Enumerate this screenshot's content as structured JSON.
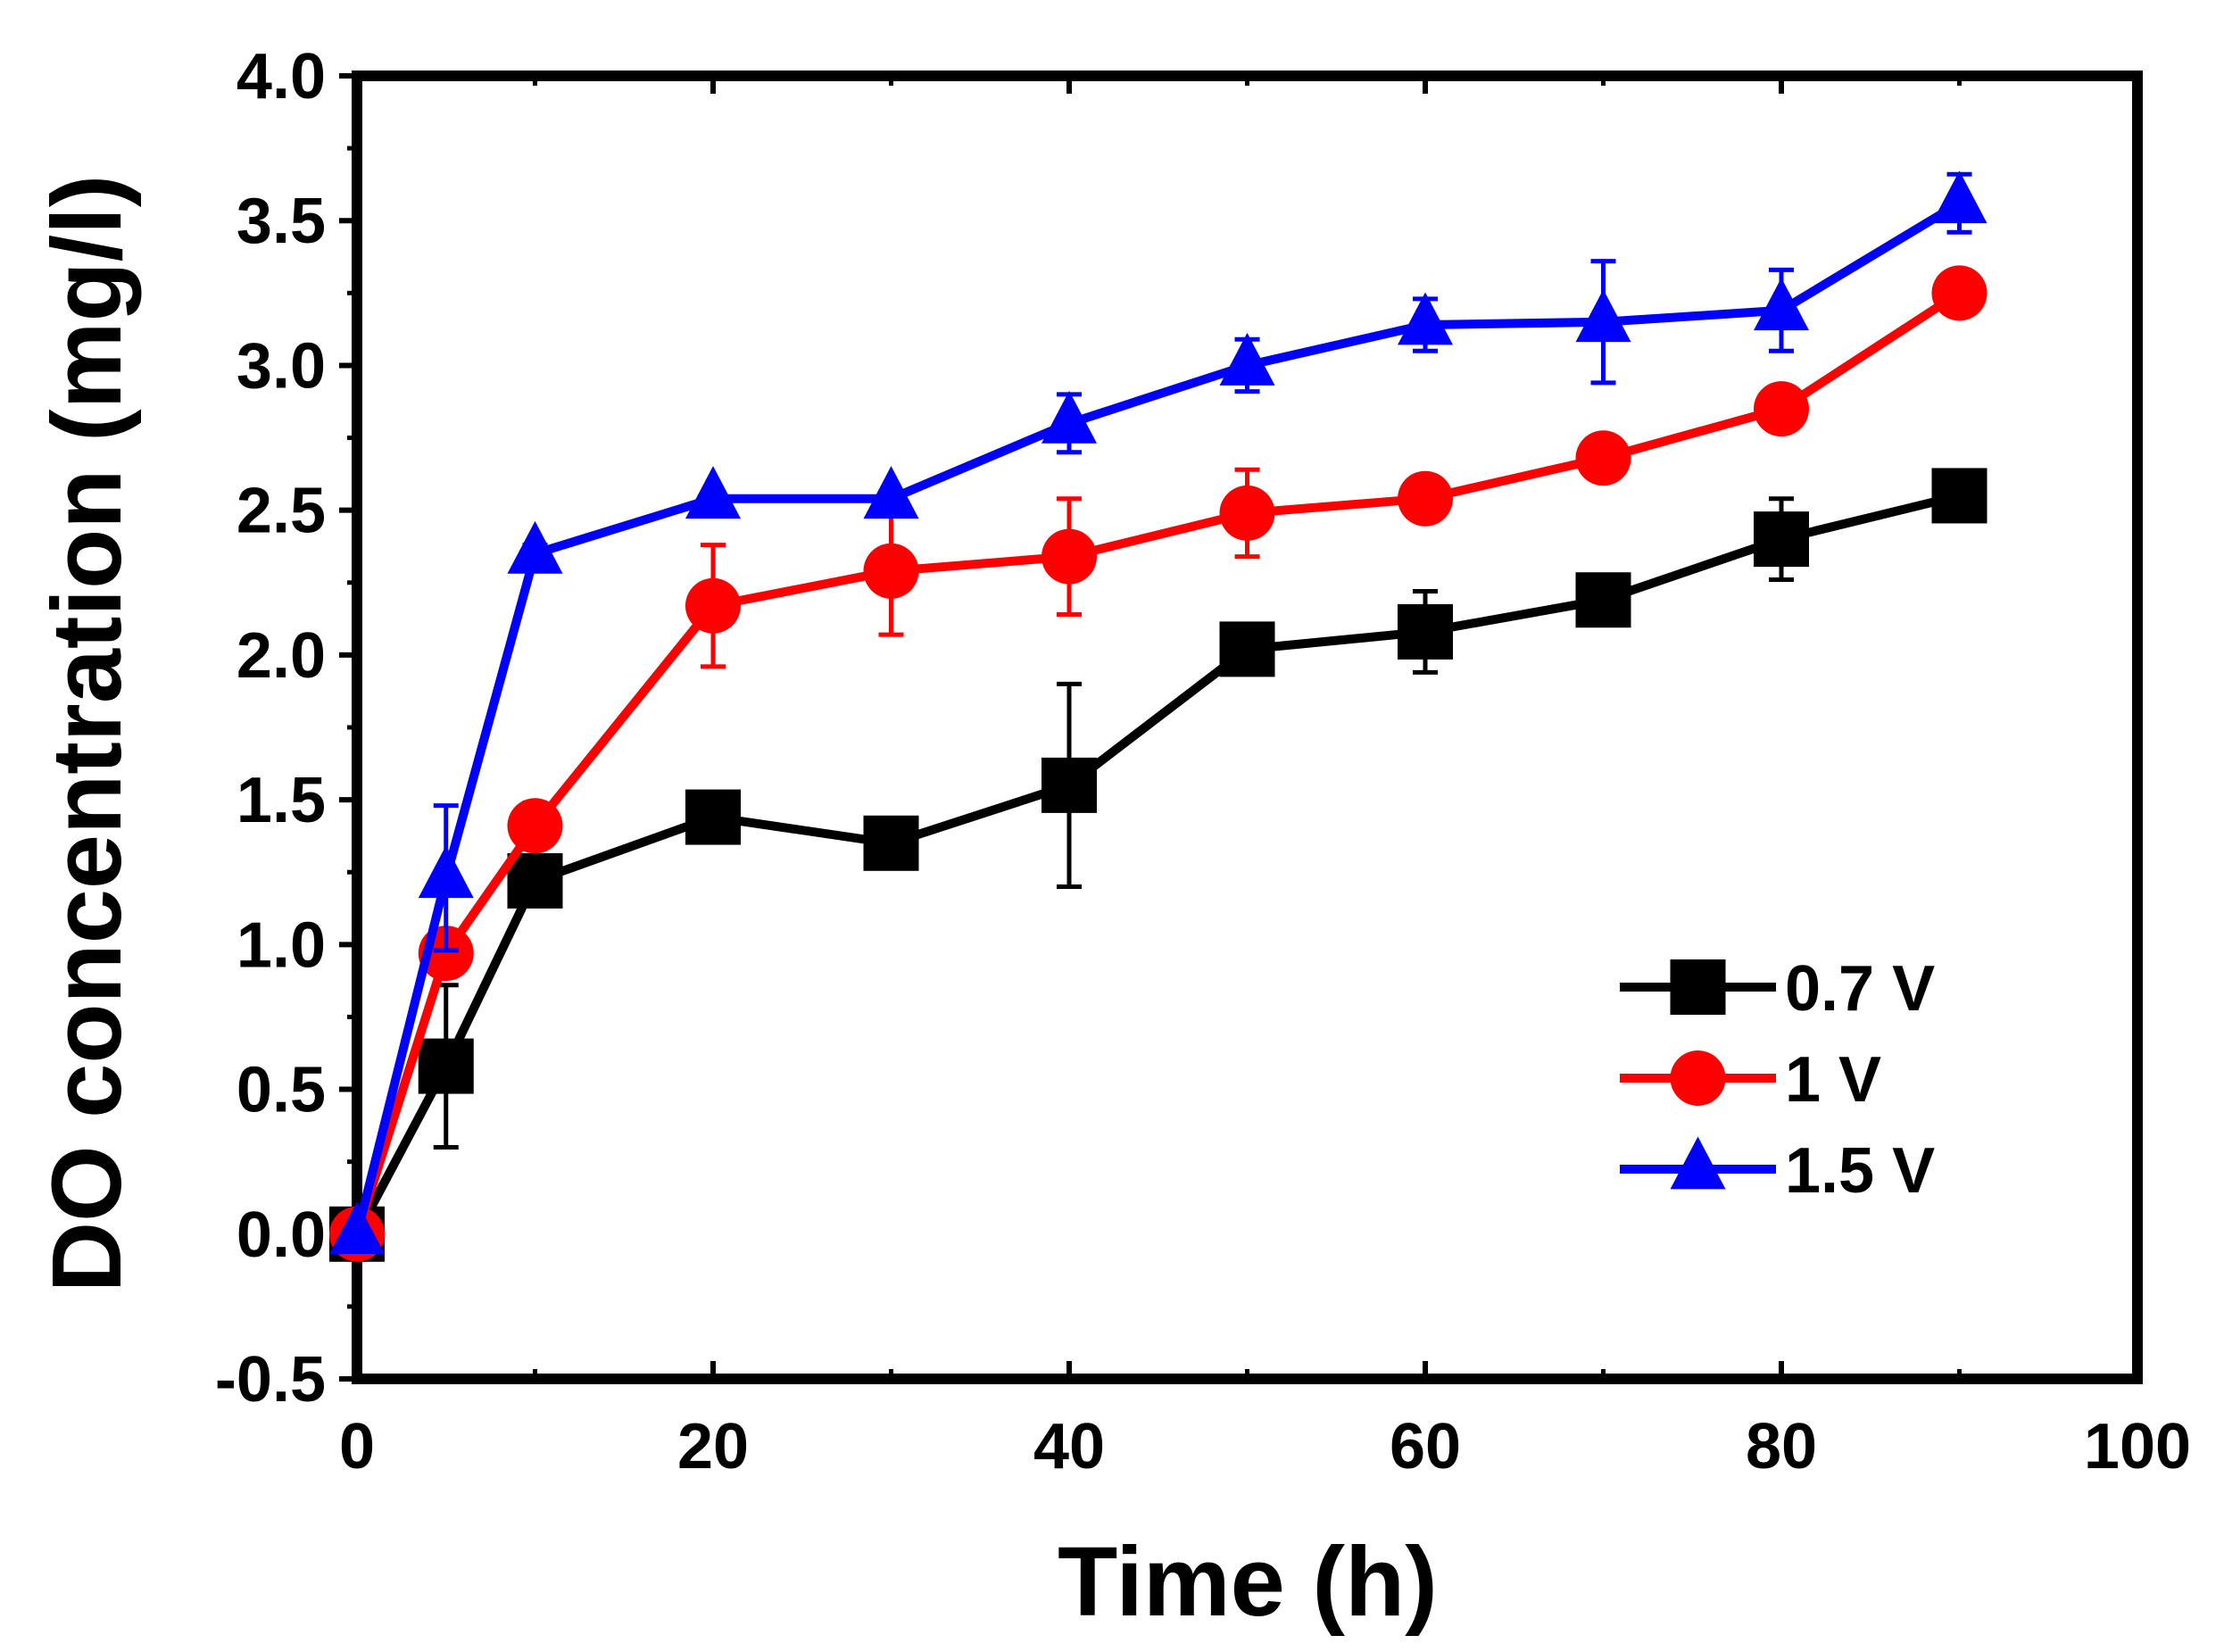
{
  "chart_data": {
    "type": "line",
    "title": "",
    "xlabel": "Time (h)",
    "ylabel": "DO concentration (mg/l)",
    "xlim": [
      0,
      100
    ],
    "ylim": [
      -0.5,
      4.0
    ],
    "xticks": [
      0,
      20,
      40,
      60,
      80,
      100
    ],
    "xtick_labels": [
      "0",
      "20",
      "40",
      "60",
      "80",
      "100"
    ],
    "yticks": [
      -0.5,
      0.0,
      0.5,
      1.0,
      1.5,
      2.0,
      2.5,
      3.0,
      3.5,
      4.0
    ],
    "ytick_labels": [
      "-0.5",
      "0.0",
      "0.5",
      "1.0",
      "1.5",
      "2.0",
      "2.5",
      "3.0",
      "3.5",
      "4.0"
    ],
    "grid": false,
    "legend_position": "lower-right",
    "x": [
      0,
      5,
      10,
      20,
      30,
      40,
      50,
      60,
      70,
      80,
      90
    ],
    "series": [
      {
        "name": "0.7 V",
        "color": "#000000",
        "marker": "square",
        "values": [
          0.0,
          0.58,
          1.22,
          1.44,
          1.35,
          1.55,
          2.02,
          2.08,
          2.19,
          2.4,
          2.55
        ],
        "errors": [
          0.0,
          0.28,
          0.04,
          0.02,
          0.02,
          0.35,
          0.04,
          0.14,
          0.02,
          0.14,
          0.02
        ]
      },
      {
        "name": "1 V",
        "color": "#ff0000",
        "marker": "circle",
        "values": [
          0.0,
          0.97,
          1.41,
          2.17,
          2.29,
          2.34,
          2.49,
          2.54,
          2.68,
          2.85,
          3.25
        ],
        "errors": [
          0.0,
          0.05,
          0.08,
          0.21,
          0.22,
          0.2,
          0.15,
          0.02,
          0.02,
          0.02,
          0.03
        ]
      },
      {
        "name": "1.5 V",
        "color": "#0000ff",
        "marker": "triangle",
        "values": [
          0.0,
          1.23,
          2.35,
          2.54,
          2.54,
          2.8,
          3.0,
          3.14,
          3.15,
          3.19,
          3.56
        ],
        "errors": [
          0.0,
          0.25,
          0.03,
          0.02,
          0.02,
          0.1,
          0.09,
          0.09,
          0.21,
          0.14,
          0.1
        ]
      }
    ]
  }
}
